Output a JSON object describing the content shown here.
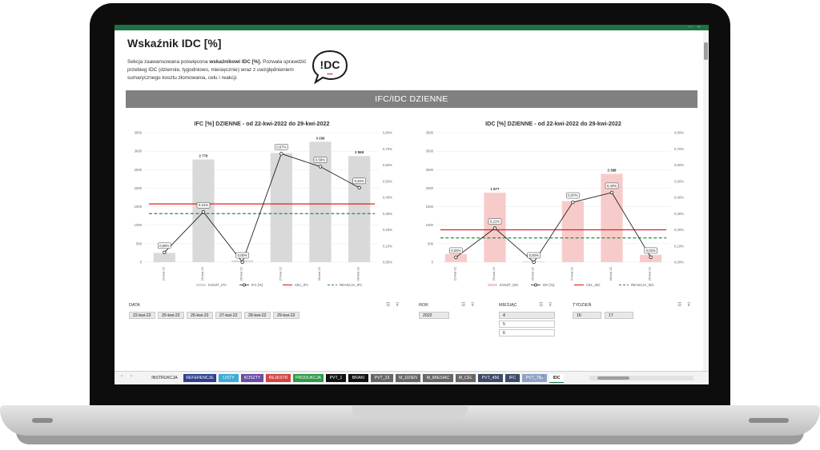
{
  "window": {
    "controls": [
      "···",
      "–"
    ]
  },
  "header": {
    "title": "Wskaźnik IDC [%]",
    "desc_pre": "Sekcja zaawansowana poświęcona ",
    "desc_bold": "wskaźnikowi IDC [%].",
    "desc_post": " Pozwala sprawdzić przebieg IDC (dziennie, tygodniowo, miesięcznie) wraz z uwzględnieniem sumarycznego kosztu złomowania, celu i reakcji.",
    "logo_text": "!DC",
    "logo_dots": "•••"
  },
  "section_band": "IFC/IDC DZIENNE",
  "chart_data": [
    {
      "type": "bar",
      "title": "IFC [%] DZIENNE - od 22-kwi-2022 do 29-kwi-2022",
      "categories": [
        "22-kwi-22",
        "25-kwi-22",
        "26-kwi-22",
        "27-kwi-22",
        "28-kwi-22",
        "29-kwi-22"
      ],
      "ylim": [
        0,
        3500
      ],
      "y2lim": [
        0,
        0.8
      ],
      "yticks": [
        "0",
        "500",
        "1000",
        "1500",
        "2000",
        "2500",
        "3000",
        "3500"
      ],
      "y2ticks": [
        "0,00%",
        "0,10%",
        "0,20%",
        "0,30%",
        "0,40%",
        "0,50%",
        "0,60%",
        "0,70%",
        "0,80%"
      ],
      "bar_color": "#d9d9d9",
      "bar_values": [
        250,
        2776,
        50,
        2950,
        3256,
        2869
      ],
      "bar_labels": [
        "",
        "2 776",
        "",
        "",
        "3 256",
        "2 869"
      ],
      "line_values": [
        0.06,
        0.31,
        0.0,
        0.67,
        0.59,
        0.46
      ],
      "line_labels": [
        "0,06%",
        "0,31%",
        "0,00%",
        "0,67%",
        "0,59%",
        "0,46%"
      ],
      "cel": 0.36,
      "reakcja": 0.3,
      "legend": [
        "KOSZT_IFC",
        "IFC [%]",
        "CEL_IFC",
        "REAKCJA_IFC"
      ]
    },
    {
      "type": "bar",
      "title": "IDC [%] DZIENNE - od 22-kwi-2022 do 29-kwi-2022",
      "categories": [
        "22-kwi-22",
        "25-kwi-22",
        "26-kwi-22",
        "27-kwi-22",
        "28-kwi-22",
        "29-kwi-22"
      ],
      "ylim": [
        0,
        3500
      ],
      "y2lim": [
        0,
        0.8
      ],
      "yticks": [
        "0",
        "500",
        "1000",
        "1500",
        "2000",
        "2500",
        "3000",
        "3500"
      ],
      "y2ticks": [
        "0,00%",
        "0,10%",
        "0,20%",
        "0,30%",
        "0,40%",
        "0,50%",
        "0,60%",
        "0,70%",
        "0,80%"
      ],
      "bar_color": "#f8cbcb",
      "bar_values": [
        220,
        1877,
        20,
        1650,
        2388,
        200
      ],
      "bar_labels": [
        "",
        "1 877",
        "",
        "",
        "2 388",
        ""
      ],
      "line_values": [
        0.03,
        0.21,
        0.0,
        0.37,
        0.43,
        0.03
      ],
      "line_labels": [
        "0,03%",
        "0,21%",
        "0,00%",
        "0,37%",
        "0,43%",
        "0,03%"
      ],
      "cel": 0.2,
      "reakcja": 0.15,
      "legend": [
        "KOSZT_IDC",
        "IDC [%]",
        "CEL_IDC",
        "REAKCJA_IDC"
      ]
    }
  ],
  "slicers": {
    "data": {
      "label": "DATA",
      "items": [
        "22-kwi-22",
        "25-kwi-22",
        "26-kwi-22",
        "27-kwi-22",
        "28-kwi-22",
        "29-kwi-22"
      ]
    },
    "rok": {
      "label": "ROK",
      "items": [
        "2022"
      ]
    },
    "miesiac": {
      "label": "MIESIĄC",
      "items": [
        "4",
        "5",
        "6"
      ]
    },
    "tydzien": {
      "label": "TYDZIEŃ",
      "items": [
        "16",
        "17"
      ]
    }
  },
  "tabs": [
    {
      "label": "INSTRUKCJA",
      "color": "#f3f3f3",
      "text": "#222222"
    },
    {
      "label": "REFERENCJE",
      "color": "#2e3f8f",
      "text": "#ffffff"
    },
    {
      "label": "LISTY",
      "color": "#3aaed8",
      "text": "#ffffff"
    },
    {
      "label": "KOSZTY",
      "color": "#6b4aa8",
      "text": "#ffffff"
    },
    {
      "label": "REJESTR",
      "color": "#d24545",
      "text": "#ffffff"
    },
    {
      "label": "PRODUKCJA",
      "color": "#2f9a47",
      "text": "#ffffff"
    },
    {
      "label": "PVT_1",
      "color": "#111111",
      "text": "#ffffff"
    },
    {
      "label": "BRAKI",
      "color": "#111111",
      "text": "#ffffff"
    },
    {
      "label": "PVT_23",
      "color": "#666666",
      "text": "#ffffff"
    },
    {
      "label": "M_DZIEN",
      "color": "#666666",
      "text": "#ffffff"
    },
    {
      "label": "M_MIESIAC",
      "color": "#666666",
      "text": "#ffffff"
    },
    {
      "label": "M_CEL",
      "color": "#666666",
      "text": "#ffffff"
    },
    {
      "label": "PVT_456",
      "color": "#3c4a66",
      "text": "#ffffff"
    },
    {
      "label": "IFC",
      "color": "#3c4a66",
      "text": "#ffffff"
    },
    {
      "label": "PVT_789",
      "color": "#8ea2c8",
      "text": "#ffffff"
    },
    {
      "label": "IDC",
      "color": "#ffffff",
      "text": "#222222"
    }
  ],
  "tab_add": "+",
  "nav": [
    "‹",
    "›"
  ]
}
